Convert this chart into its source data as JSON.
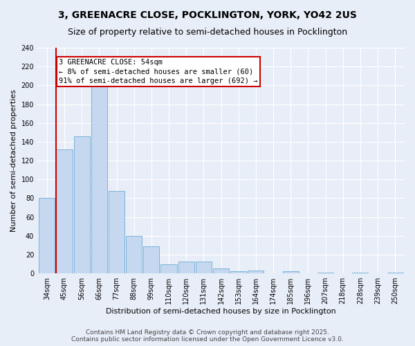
{
  "title": "3, GREENACRE CLOSE, POCKLINGTON, YORK, YO42 2US",
  "subtitle": "Size of property relative to semi-detached houses in Pocklington",
  "xlabel": "Distribution of semi-detached houses by size in Pocklington",
  "ylabel": "Number of semi-detached properties",
  "bins": [
    "34sqm",
    "45sqm",
    "56sqm",
    "66sqm",
    "77sqm",
    "88sqm",
    "99sqm",
    "110sqm",
    "120sqm",
    "131sqm",
    "142sqm",
    "153sqm",
    "164sqm",
    "174sqm",
    "185sqm",
    "196sqm",
    "207sqm",
    "218sqm",
    "228sqm",
    "239sqm",
    "250sqm"
  ],
  "values": [
    80,
    132,
    146,
    200,
    88,
    40,
    29,
    10,
    13,
    13,
    5,
    2,
    3,
    0,
    2,
    0,
    1,
    0,
    1,
    0,
    1
  ],
  "bar_color": "#c5d8f0",
  "bar_edge_color": "#6aaad4",
  "property_size": "54sqm",
  "pct_smaller": 8,
  "count_smaller": 60,
  "pct_larger": 91,
  "count_larger": 692,
  "annotation_box_color": "#ffffff",
  "annotation_box_edge": "#cc0000",
  "property_line_color": "#cc0000",
  "footer_text": "Contains HM Land Registry data © Crown copyright and database right 2025.\nContains public sector information licensed under the Open Government Licence v3.0.",
  "ylim": [
    0,
    240
  ],
  "yticks": [
    0,
    20,
    40,
    60,
    80,
    100,
    120,
    140,
    160,
    180,
    200,
    220,
    240
  ],
  "background_color": "#e8eef8",
  "grid_color": "#ffffff",
  "title_fontsize": 10,
  "subtitle_fontsize": 9,
  "axis_label_fontsize": 8,
  "tick_fontsize": 7,
  "footer_fontsize": 6.5,
  "annotation_fontsize": 7.5
}
